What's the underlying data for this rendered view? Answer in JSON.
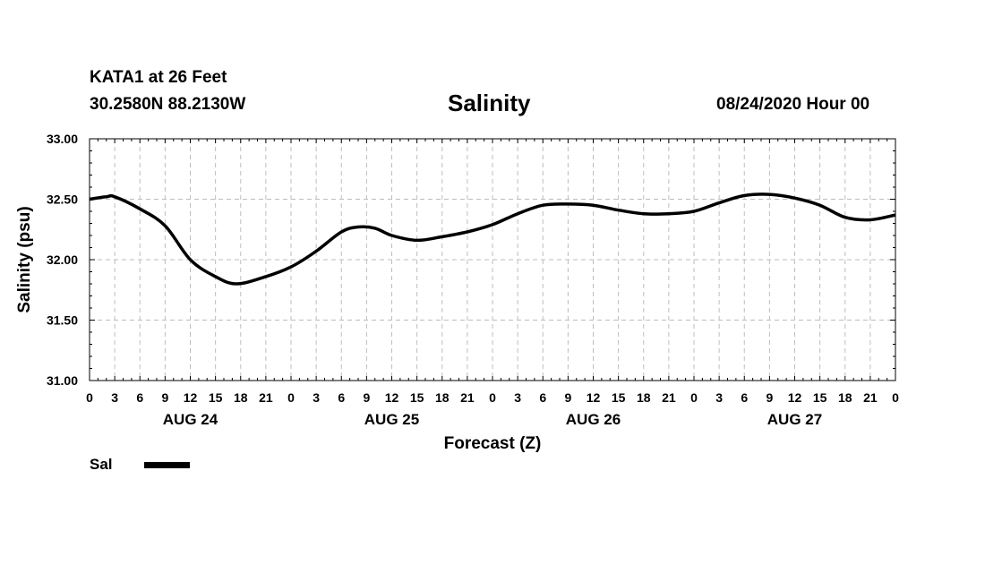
{
  "header": {
    "station": "KATA1 at 26 Feet",
    "coords": "30.2580N 88.2130W",
    "title": "Salinity",
    "runtime": "08/24/2020 Hour 00"
  },
  "legend": {
    "label": "Sal",
    "color": "#000000"
  },
  "chart_data": {
    "type": "line",
    "title": "Salinity",
    "xlabel": "Forecast (Z)",
    "ylabel": "Salinity (psu)",
    "ylim": [
      31.0,
      33.0
    ],
    "xlim": [
      0,
      96
    ],
    "x_units": "hours since 08/24/2020 00Z",
    "y_ticks": [
      "31.00",
      "31.50",
      "32.00",
      "32.50",
      "33.00"
    ],
    "x_ticks": [
      {
        "x": 0,
        "label": "0"
      },
      {
        "x": 3,
        "label": "3"
      },
      {
        "x": 6,
        "label": "6"
      },
      {
        "x": 9,
        "label": "9"
      },
      {
        "x": 12,
        "label": "12"
      },
      {
        "x": 15,
        "label": "15"
      },
      {
        "x": 18,
        "label": "18"
      },
      {
        "x": 21,
        "label": "21"
      },
      {
        "x": 24,
        "label": "0"
      },
      {
        "x": 27,
        "label": "3"
      },
      {
        "x": 30,
        "label": "6"
      },
      {
        "x": 33,
        "label": "9"
      },
      {
        "x": 36,
        "label": "12"
      },
      {
        "x": 39,
        "label": "15"
      },
      {
        "x": 42,
        "label": "18"
      },
      {
        "x": 45,
        "label": "21"
      },
      {
        "x": 48,
        "label": "0"
      },
      {
        "x": 51,
        "label": "3"
      },
      {
        "x": 54,
        "label": "6"
      },
      {
        "x": 57,
        "label": "9"
      },
      {
        "x": 60,
        "label": "12"
      },
      {
        "x": 63,
        "label": "15"
      },
      {
        "x": 66,
        "label": "18"
      },
      {
        "x": 69,
        "label": "21"
      },
      {
        "x": 72,
        "label": "0"
      },
      {
        "x": 75,
        "label": "3"
      },
      {
        "x": 78,
        "label": "6"
      },
      {
        "x": 81,
        "label": "9"
      },
      {
        "x": 84,
        "label": "12"
      },
      {
        "x": 87,
        "label": "15"
      },
      {
        "x": 90,
        "label": "18"
      },
      {
        "x": 93,
        "label": "21"
      },
      {
        "x": 96,
        "label": "0"
      }
    ],
    "date_labels": [
      {
        "x": 12,
        "label": "AUG 24"
      },
      {
        "x": 36,
        "label": "AUG 25"
      },
      {
        "x": 60,
        "label": "AUG 26"
      },
      {
        "x": 84,
        "label": "AUG 27"
      }
    ],
    "grid": true,
    "legend_position": "bottom-left",
    "series": [
      {
        "name": "Sal",
        "color": "#000000",
        "x": [
          0,
          2,
          3,
          6,
          9,
          12,
          15,
          17.5,
          21,
          24,
          27,
          30,
          32,
          34,
          36,
          39,
          42,
          45,
          48,
          51,
          54,
          57,
          60,
          63,
          66,
          69,
          72,
          75,
          78,
          81,
          84,
          87,
          90,
          93,
          96
        ],
        "y": [
          32.5,
          32.52,
          32.52,
          32.42,
          32.28,
          32.0,
          31.86,
          31.8,
          31.86,
          31.94,
          32.07,
          32.23,
          32.27,
          32.26,
          32.2,
          32.16,
          32.19,
          32.23,
          32.29,
          32.38,
          32.45,
          32.46,
          32.45,
          32.41,
          32.38,
          32.38,
          32.4,
          32.47,
          32.53,
          32.54,
          32.51,
          32.45,
          32.35,
          32.33,
          32.37
        ]
      }
    ]
  }
}
